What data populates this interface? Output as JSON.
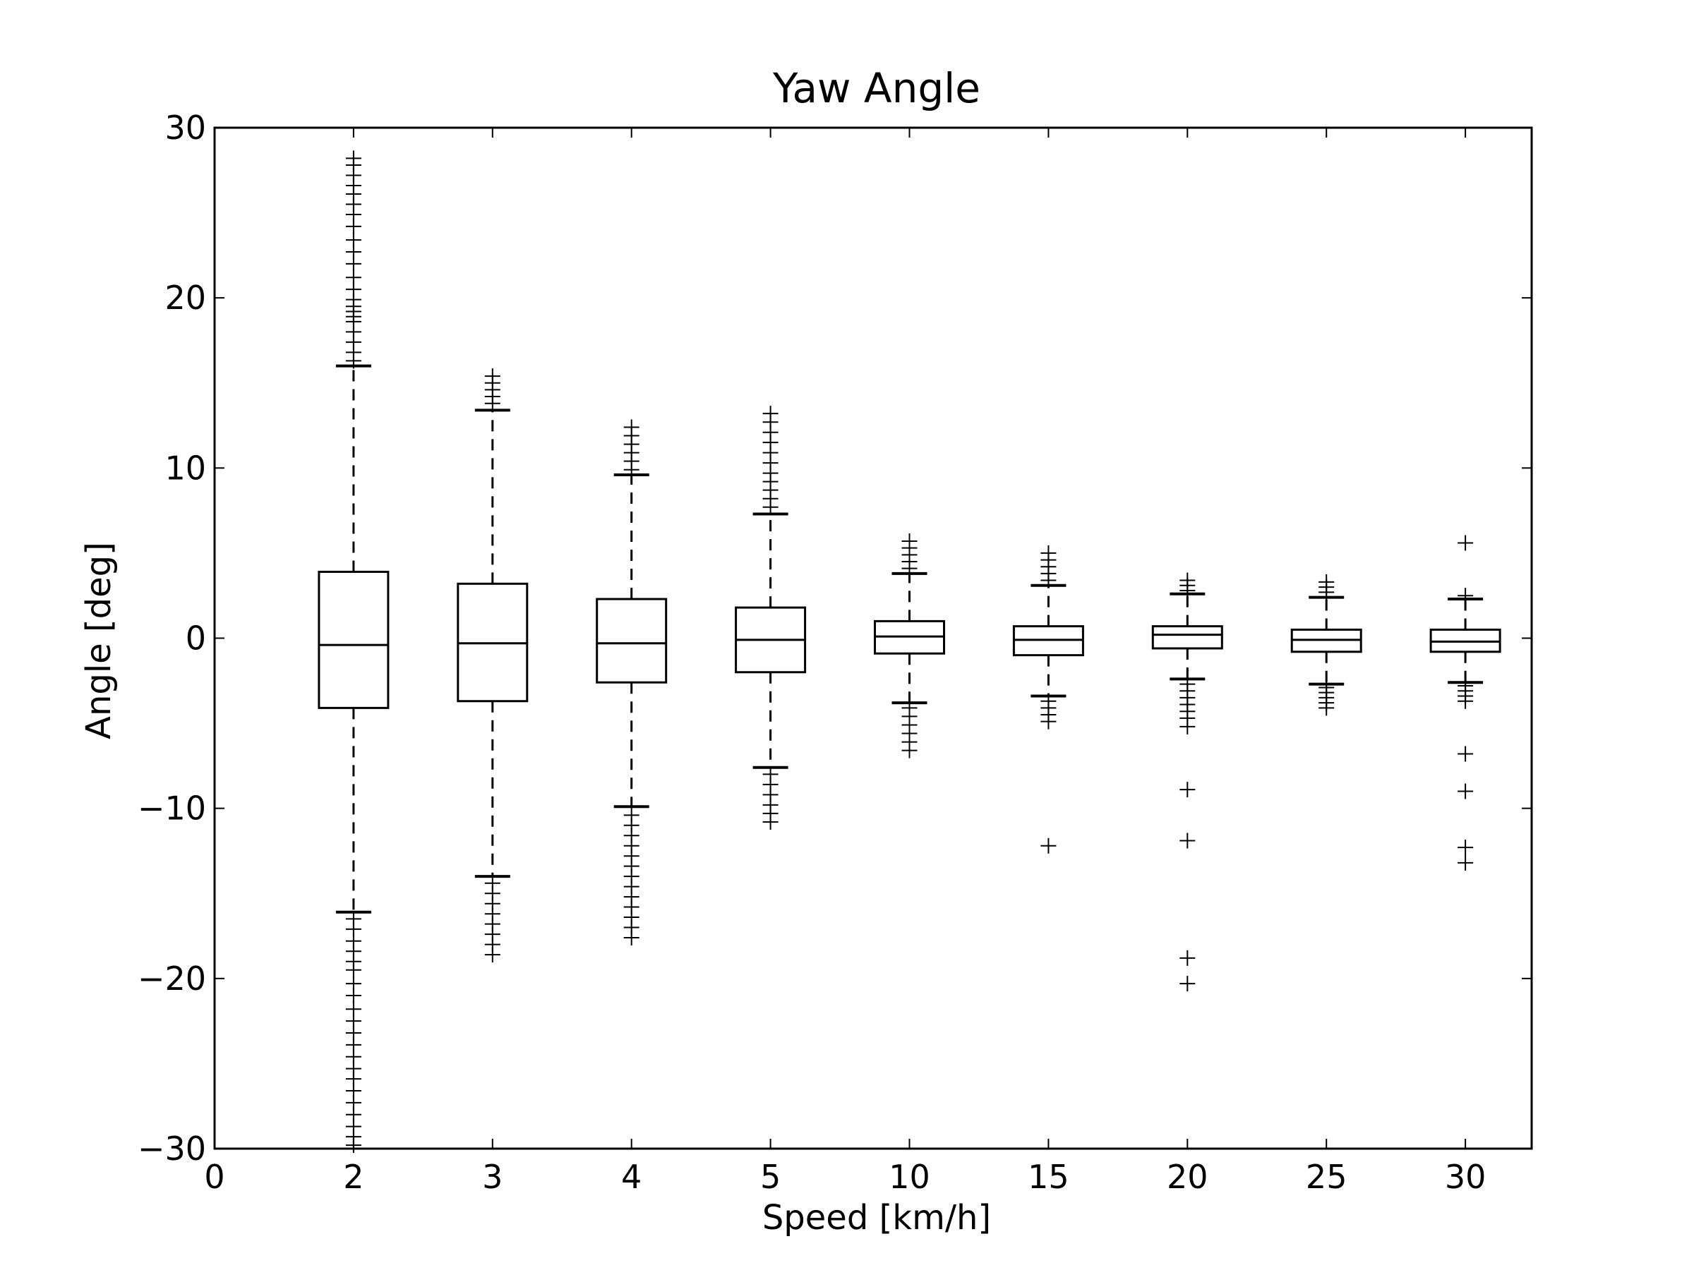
{
  "chart_data": {
    "type": "box",
    "title": "Yaw Angle",
    "xlabel": "Speed [km/h]",
    "ylabel": "Angle [deg]",
    "ylim": [
      -30,
      30
    ],
    "yticks": [
      -30,
      -20,
      -10,
      0,
      10,
      20,
      30
    ],
    "ytick_labels": [
      "−30",
      "−20",
      "−10",
      "0",
      "10",
      "20",
      "30"
    ],
    "xtick_labels": [
      "0",
      "2",
      "3",
      "4",
      "5",
      "10",
      "15",
      "20",
      "25",
      "30"
    ],
    "grid": false,
    "legend": "none",
    "boxes": [
      {
        "category": "2",
        "whisker_low": -16.1,
        "q1": -4.1,
        "median": -0.4,
        "q3": 3.9,
        "whisker_high": 16.0,
        "outliers": [
          16.3,
          16.8,
          17.4,
          18.0,
          18.6,
          18.9,
          19.2,
          19.5,
          19.9,
          20.5,
          21.2,
          22.0,
          22.7,
          23.4,
          24.2,
          24.9,
          25.5,
          26.1,
          26.6,
          27.2,
          27.8,
          28.2,
          -16.5,
          -17.1,
          -17.8,
          -18.4,
          -19.0,
          -19.5,
          -20.3,
          -21.0,
          -21.8,
          -22.5,
          -23.2,
          -23.9,
          -24.6,
          -25.3,
          -25.9,
          -26.6,
          -27.3,
          -28.0,
          -28.7,
          -29.3,
          -29.8
        ]
      },
      {
        "category": "3",
        "whisker_low": -14.0,
        "q1": -3.7,
        "median": -0.3,
        "q3": 3.2,
        "whisker_high": 13.4,
        "outliers": [
          13.8,
          14.2,
          14.6,
          15.0,
          15.4,
          -14.4,
          -15.0,
          -15.6,
          -16.2,
          -16.8,
          -17.4,
          -18.0,
          -18.6
        ]
      },
      {
        "category": "4",
        "whisker_low": -9.9,
        "q1": -2.6,
        "median": -0.3,
        "q3": 2.3,
        "whisker_high": 9.6,
        "outliers": [
          9.9,
          10.4,
          10.9,
          11.4,
          11.9,
          12.4,
          -10.4,
          -11.0,
          -11.6,
          -12.2,
          -12.8,
          -13.4,
          -14.0,
          -14.6,
          -15.2,
          -15.8,
          -16.4,
          -17.0,
          -17.6
        ]
      },
      {
        "category": "5",
        "whisker_low": -7.6,
        "q1": -2.0,
        "median": -0.1,
        "q3": 1.8,
        "whisker_high": 7.3,
        "outliers": [
          7.7,
          8.2,
          8.7,
          9.2,
          9.7,
          10.3,
          10.9,
          11.5,
          12.1,
          12.7,
          13.2,
          -8.0,
          -8.6,
          -9.2,
          -9.8,
          -10.3,
          -10.8
        ]
      },
      {
        "category": "10",
        "whisker_low": -3.8,
        "q1": -0.9,
        "median": 0.1,
        "q3": 1.0,
        "whisker_high": 3.8,
        "outliers": [
          4.1,
          4.5,
          4.9,
          5.3,
          5.7,
          -4.1,
          -4.6,
          -5.1,
          -5.6,
          -6.1,
          -6.6
        ]
      },
      {
        "category": "15",
        "whisker_low": -3.4,
        "q1": -1.0,
        "median": -0.1,
        "q3": 0.7,
        "whisker_high": 3.1,
        "outliers": [
          3.4,
          3.8,
          4.2,
          4.6,
          5.0,
          -3.7,
          -4.1,
          -4.5,
          -4.9,
          -12.2
        ]
      },
      {
        "category": "20",
        "whisker_low": -2.4,
        "q1": -0.6,
        "median": 0.2,
        "q3": 0.7,
        "whisker_high": 2.6,
        "outliers": [
          2.8,
          3.1,
          3.4,
          -2.7,
          -3.1,
          -3.5,
          -3.9,
          -4.3,
          -4.7,
          -5.2,
          -8.9,
          -11.9,
          -18.8,
          -20.3
        ]
      },
      {
        "category": "25",
        "whisker_low": -2.7,
        "q1": -0.8,
        "median": -0.1,
        "q3": 0.5,
        "whisker_high": 2.4,
        "outliers": [
          2.7,
          3.0,
          3.3,
          -2.9,
          -3.2,
          -3.5,
          -3.8,
          -4.1
        ]
      },
      {
        "category": "30",
        "whisker_low": -2.6,
        "q1": -0.8,
        "median": -0.2,
        "q3": 0.5,
        "whisker_high": 2.3,
        "outliers": [
          2.5,
          -2.8,
          -3.1,
          -3.4,
          -3.7,
          -6.8,
          -9.0,
          -12.3,
          -13.2,
          5.6
        ]
      }
    ]
  }
}
